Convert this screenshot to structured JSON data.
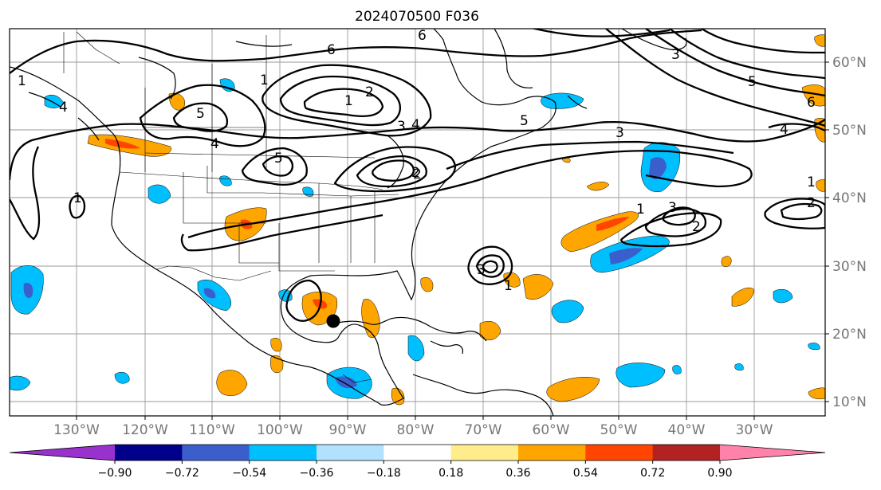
{
  "title": "2024070500 F036",
  "map": {
    "lat_labels": [
      "60°N",
      "50°N",
      "40°N",
      "30°N",
      "20°N",
      "10°N"
    ],
    "lon_labels": [
      "130°W",
      "120°W",
      "110°W",
      "100°W",
      "90°W",
      "80°W",
      "70°W",
      "60°W",
      "50°W",
      "40°W",
      "30°W"
    ],
    "contour_labels": [
      "1",
      "4",
      "5",
      "6",
      "1",
      "2",
      "3",
      "4",
      "5",
      "1",
      "5",
      "4",
      "2",
      "3",
      "3",
      "2",
      "1",
      "5",
      "6",
      "4",
      "1",
      "3",
      "2",
      "1",
      "2",
      "6",
      "3",
      "1"
    ],
    "marker": "storm-position-dot"
  },
  "colorbar": {
    "ticks": [
      "−0.90",
      "−0.72",
      "−0.54",
      "−0.36",
      "−0.18",
      "0.18",
      "0.36",
      "0.54",
      "0.72",
      "0.90"
    ],
    "colors": [
      "#9932cc",
      "#00008b",
      "#3a5fcd",
      "#00bfff",
      "#b0e2ff",
      "#ffffff",
      "#ffec8b",
      "#ffa500",
      "#ff4500",
      "#b22222",
      "#ff82ab"
    ]
  },
  "colors": {
    "positive_low": "#ffa500",
    "positive_mid": "#ff4500",
    "negative_low": "#00bfff",
    "negative_mid": "#3a5fcd",
    "negative_high": "#9932cc",
    "grid": "#9a9a9a",
    "axis_label": "#777777"
  }
}
